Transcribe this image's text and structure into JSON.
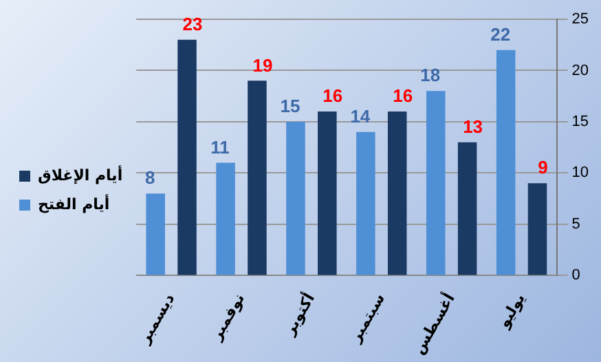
{
  "chart_data": {
    "type": "bar",
    "categories": [
      "ديسمبر",
      "نوفمبر",
      "أكتوبر",
      "سبتمبر",
      "أغسطس",
      "يوليو"
    ],
    "series": [
      {
        "name": "أيام الفتح",
        "color": "#4f8fd6",
        "values": [
          8,
          11,
          15,
          14,
          18,
          22
        ]
      },
      {
        "name": "أيام الإغلاق",
        "color": "#1a3a64",
        "values": [
          23,
          19,
          16,
          16,
          13,
          9
        ]
      }
    ],
    "ylim": [
      0,
      25
    ],
    "yticks": [
      0,
      5,
      10,
      15,
      20,
      25
    ],
    "grid": "y",
    "legend": "left",
    "data_labels": true
  }
}
